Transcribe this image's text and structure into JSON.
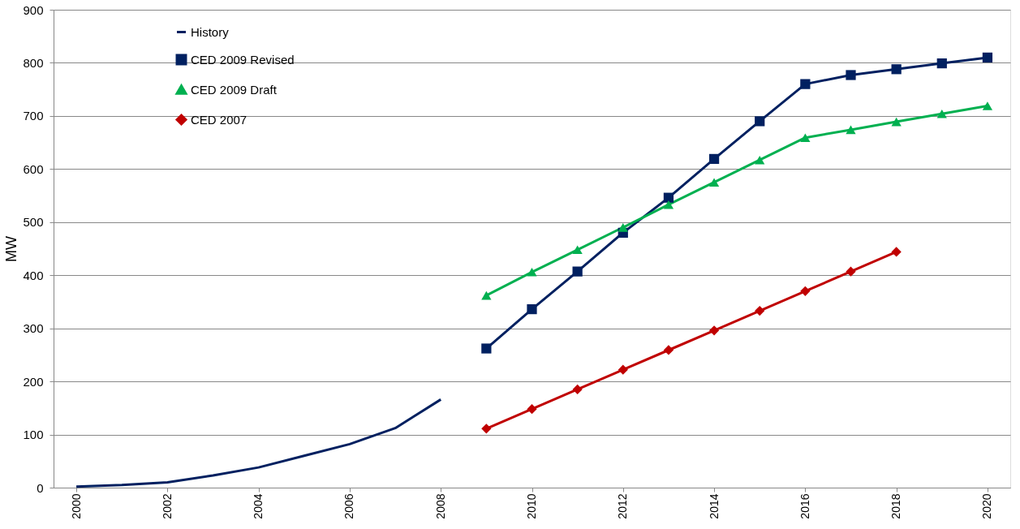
{
  "chart_data": {
    "type": "line",
    "ylabel": "MW",
    "xlim": [
      1999.5,
      2020.5
    ],
    "xticks": [
      2000,
      2002,
      2004,
      2006,
      2008,
      2010,
      2012,
      2014,
      2016,
      2018,
      2020
    ],
    "ylim": [
      0,
      900
    ],
    "yticks": [
      0,
      100,
      200,
      300,
      400,
      500,
      600,
      700,
      800,
      900
    ],
    "grid": "y",
    "legend": "top left",
    "series": [
      {
        "name": "History",
        "color": "#002060",
        "marker": "none",
        "x": [
          2000,
          2001,
          2002,
          2003,
          2004,
          2005,
          2006,
          2007,
          2008
        ],
        "values": [
          2,
          5,
          10,
          23,
          38,
          60,
          82,
          112,
          166
        ]
      },
      {
        "name": "CED 2009 Revised",
        "color": "#002060",
        "marker": "square",
        "x": [
          2009,
          2010,
          2011,
          2012,
          2013,
          2014,
          2015,
          2016,
          2017,
          2018,
          2019,
          2020
        ],
        "values": [
          262,
          336,
          407,
          480,
          546,
          619,
          690,
          760,
          777,
          788,
          799,
          810
        ]
      },
      {
        "name": "CED 2009 Draft",
        "color": "#00b050",
        "marker": "triangle",
        "x": [
          2009,
          2010,
          2011,
          2012,
          2013,
          2014,
          2015,
          2016,
          2017,
          2018,
          2019,
          2020
        ],
        "values": [
          362,
          406,
          448,
          490,
          533,
          575,
          617,
          659,
          674,
          689,
          704,
          719
        ]
      },
      {
        "name": "CED 2007",
        "color": "#c00000",
        "marker": "diamond",
        "x": [
          2009,
          2010,
          2011,
          2012,
          2013,
          2014,
          2015,
          2016,
          2017,
          2018
        ],
        "values": [
          111,
          148,
          185,
          222,
          259,
          296,
          333,
          370,
          407,
          444
        ]
      }
    ]
  }
}
